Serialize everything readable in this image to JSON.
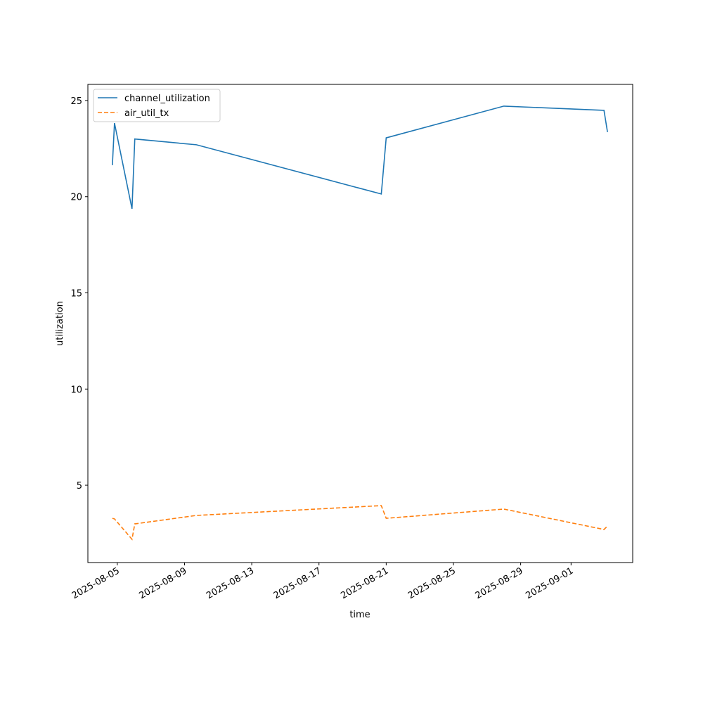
{
  "chart_data": {
    "type": "line",
    "x_label": "time",
    "y_label": "utilization",
    "x": [
      "2025-08-04T17:00",
      "2025-08-04T20:00",
      "2025-08-05T21:00",
      "2025-08-06T01:00",
      "2025-08-09T17:00",
      "2025-08-20T17:00",
      "2025-08-21T00:00",
      "2025-08-28T00:00",
      "2025-09-02T23:00",
      "2025-09-03T04:00"
    ],
    "series": [
      {
        "name": "channel_utilization",
        "color": "#1f77b4",
        "linestyle": "solid",
        "values": [
          21.64,
          23.83,
          19.37,
          23.0,
          22.7,
          20.14,
          23.06,
          24.71,
          24.49,
          23.36
        ]
      },
      {
        "name": "air_util_tx",
        "color": "#ff7f0e",
        "linestyle": "dashed",
        "values": [
          3.28,
          3.25,
          2.19,
          2.99,
          3.43,
          3.94,
          3.28,
          3.76,
          2.7,
          2.88
        ]
      }
    ],
    "xlim": [
      "2025-08-03T06:00",
      "2025-09-04T16:00"
    ],
    "xticks": [
      "2025-08-05",
      "2025-08-09",
      "2025-08-13",
      "2025-08-17",
      "2025-08-21",
      "2025-08-25",
      "2025-08-29",
      "2025-09-01"
    ],
    "ylim": [
      0.98,
      25.84
    ],
    "yticks": [
      5,
      10,
      15,
      20,
      25
    ],
    "grid": false,
    "legend": "upper-left"
  }
}
